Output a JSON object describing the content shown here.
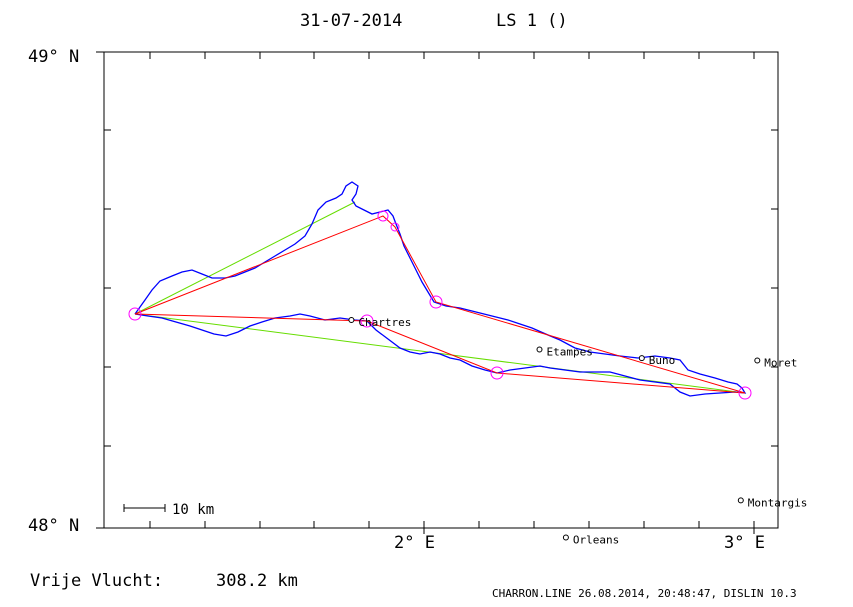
{
  "header": {
    "date": "31-07-2014",
    "task": "LS 1 ()"
  },
  "axes": {
    "y_top_label": "49° N",
    "y_bottom_label": "48° N",
    "x_label_1": "2° E",
    "x_label_2": "3° E"
  },
  "map": {
    "lon_range": [
      1.1,
      3.15
    ],
    "lat_range": [
      48.0,
      49.0
    ],
    "colors": {
      "track": "#0000ff",
      "optimized": "#ff0000",
      "declared": "#66dd00",
      "turnpoint": "#ff00ff"
    },
    "cities": [
      {
        "name": "Chartres",
        "lon": 1.78,
        "lat": 48.437
      },
      {
        "name": "Etampes",
        "lon": 2.35,
        "lat": 48.375
      },
      {
        "name": "Buno",
        "lon": 2.66,
        "lat": 48.357
      },
      {
        "name": "Moret",
        "lon": 3.01,
        "lat": 48.352
      },
      {
        "name": "Montargis",
        "lon": 2.96,
        "lat": 48.058
      },
      {
        "name": "Orleans",
        "lon": 2.43,
        "lat": 47.98
      }
    ]
  },
  "scale_bar": {
    "label": "10 km"
  },
  "footer": {
    "distance_label": "Vrije Vlucht:",
    "distance_value": "308.2 km",
    "credit": "CHARRON.LINE 26.08.2014, 20:48:47, DISLIN 10.3"
  }
}
